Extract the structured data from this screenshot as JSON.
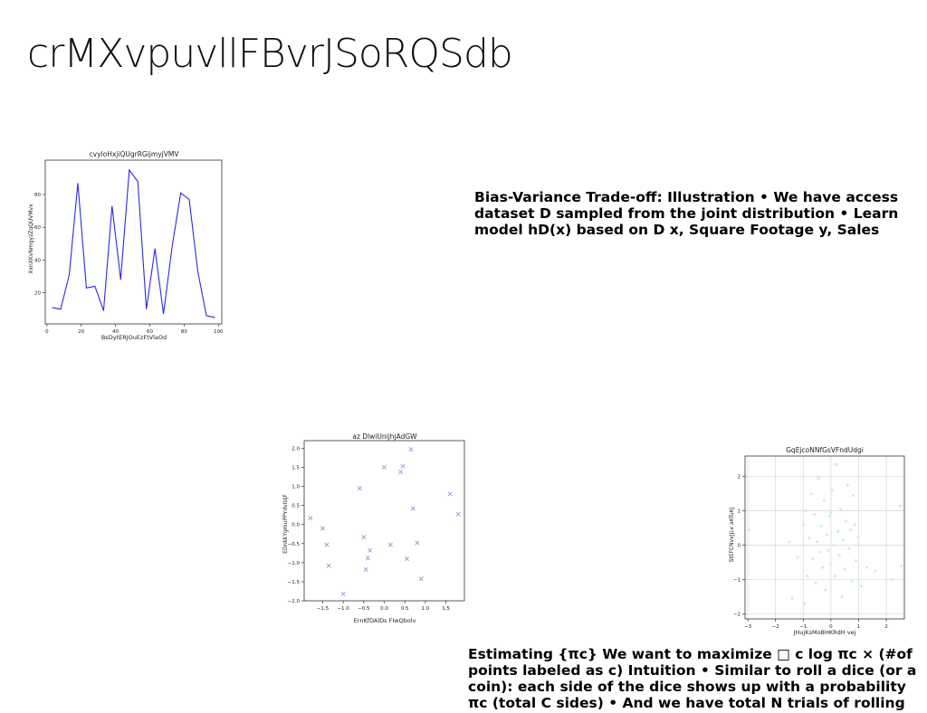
{
  "slide_title": "crMXvpuvllFBvrJSoRQSdb",
  "paragraphs": {
    "p1": "Bias-Variance Trade-off: Illustration • We have access dataset D sampled from the joint distribution • Learn model hD(x) based on D x, Square Footage y, Sales",
    "p2": "Estimating {πc} We want to maximize □ c log πc × (#of points labeled as c) Intuition • Similar to roll a dice (or a coin): each side of the dice shows up with a probability πc (total C sides) • And we have total N trials of rolling"
  },
  "chart_data": [
    {
      "type": "line",
      "title": "cvyloHxjiQUgrRGijmyjVMV",
      "xlabel": "BsDytERJOuEzFtVlaOd",
      "ylabel": "XxnXKvNmgyzZqQUVMvx",
      "color": "#2a2ae8",
      "xlim": [
        -1,
        102
      ],
      "ylim": [
        1,
        101
      ],
      "xticks": [
        0,
        20,
        40,
        60,
        80,
        100
      ],
      "yticks": [
        20,
        40,
        60,
        80
      ],
      "x": [
        3,
        8,
        13,
        18,
        23,
        28,
        33,
        38,
        43,
        48,
        53,
        58,
        63,
        68,
        73,
        78,
        83,
        88,
        93,
        98
      ],
      "y": [
        11,
        10,
        31,
        87,
        23,
        24,
        9,
        73,
        28,
        95,
        88,
        10,
        47,
        7,
        48,
        81,
        77,
        33,
        6,
        5
      ]
    },
    {
      "type": "scatter",
      "title": "az DlwiUnijhjAdGW",
      "xlabel": "ErnKfDAlDs FlwQbolv",
      "ylabel": "EDnkkYgmuPPYdvIUjF",
      "marker": "x",
      "color": "#a98fd6",
      "xlim": [
        -1.95,
        1.95
      ],
      "ylim": [
        -2.0,
        2.2
      ],
      "xticks": [
        -1.5,
        -1.0,
        -0.5,
        0.0,
        0.5,
        1.0,
        1.5
      ],
      "yticks": [
        -2.0,
        -1.5,
        -1.0,
        -0.5,
        0.0,
        0.5,
        1.0,
        1.5,
        2.0
      ],
      "points": [
        [
          -1.8,
          0.17
        ],
        [
          -1.5,
          -0.1
        ],
        [
          -1.4,
          -0.53
        ],
        [
          -1.35,
          -1.08
        ],
        [
          -1.0,
          -1.82
        ],
        [
          -0.6,
          0.95
        ],
        [
          -0.5,
          -0.33
        ],
        [
          -0.45,
          -1.18
        ],
        [
          -0.4,
          -0.88
        ],
        [
          -0.35,
          -0.68
        ],
        [
          0.0,
          1.5
        ],
        [
          0.15,
          -0.53
        ],
        [
          0.4,
          1.38
        ],
        [
          0.45,
          1.53
        ],
        [
          0.55,
          -0.9
        ],
        [
          0.65,
          1.97
        ],
        [
          0.7,
          0.42
        ],
        [
          0.8,
          -0.48
        ],
        [
          0.9,
          -1.42
        ],
        [
          1.6,
          0.8
        ],
        [
          1.8,
          0.27
        ]
      ]
    },
    {
      "type": "scatter",
      "title": "GqEjcoNNfGsVFndUdgi",
      "xlabel": "JHujKsMoBHKRdH vej",
      "ylabel": "StEFCNvvJjLv aKTuKJ",
      "marker": "o",
      "color": "#c8ecec",
      "grid": true,
      "xlim": [
        -3.1,
        2.65
      ],
      "ylim": [
        -2.15,
        2.6
      ],
      "xticks": [
        -3,
        -2,
        -1,
        0,
        1,
        2
      ],
      "yticks": [
        -2,
        -1,
        0,
        1,
        2
      ],
      "points": [
        [
          -2.95,
          0.45
        ],
        [
          -1.4,
          -1.55
        ],
        [
          -1.2,
          -0.35
        ],
        [
          -1.0,
          0.6
        ],
        [
          -0.9,
          1.0
        ],
        [
          -0.85,
          -0.9
        ],
        [
          -0.8,
          0.2
        ],
        [
          -0.7,
          1.5
        ],
        [
          -0.65,
          -0.4
        ],
        [
          -0.6,
          0.9
        ],
        [
          -0.55,
          -1.1
        ],
        [
          -0.5,
          0.1
        ],
        [
          -0.45,
          1.95
        ],
        [
          -0.4,
          -0.2
        ],
        [
          -0.35,
          0.55
        ],
        [
          -0.3,
          -0.65
        ],
        [
          -0.25,
          1.3
        ],
        [
          -0.2,
          -1.3
        ],
        [
          -0.15,
          0.3
        ],
        [
          -0.1,
          -0.15
        ],
        [
          -0.05,
          0.85
        ],
        [
          0.0,
          -0.55
        ],
        [
          0.05,
          1.6
        ],
        [
          0.1,
          0.0
        ],
        [
          0.15,
          -0.9
        ],
        [
          0.2,
          2.35
        ],
        [
          0.25,
          0.4
        ],
        [
          0.3,
          -0.3
        ],
        [
          0.35,
          1.05
        ],
        [
          0.4,
          -1.5
        ],
        [
          0.45,
          0.15
        ],
        [
          0.5,
          -0.7
        ],
        [
          0.55,
          0.7
        ],
        [
          0.6,
          1.75
        ],
        [
          0.65,
          -0.1
        ],
        [
          0.7,
          0.45
        ],
        [
          0.75,
          -1.05
        ],
        [
          0.8,
          1.45
        ],
        [
          0.85,
          0.6
        ],
        [
          0.9,
          -0.45
        ],
        [
          1.0,
          0.25
        ],
        [
          1.1,
          -1.2
        ],
        [
          1.3,
          -0.65
        ],
        [
          1.6,
          -0.75
        ],
        [
          2.2,
          -1.0
        ],
        [
          2.5,
          1.15
        ],
        [
          2.55,
          -0.6
        ],
        [
          -0.95,
          -1.7
        ],
        [
          -1.5,
          0.1
        ],
        [
          0.0,
          0.95
        ]
      ]
    }
  ]
}
